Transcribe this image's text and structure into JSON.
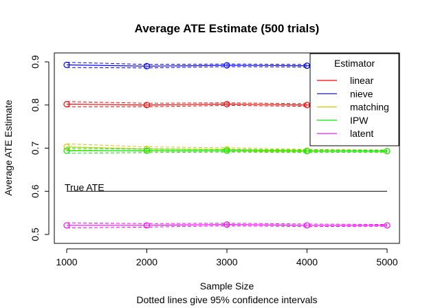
{
  "chart_data": {
    "type": "line",
    "title": "Average ATE Estimate (500 trials)",
    "xlabel": "Sample Size",
    "subxlabel": "Dotted lines give 95% confidence intervals",
    "ylabel": "Average ATE Estimate",
    "x": [
      1000,
      2000,
      3000,
      4000,
      5000
    ],
    "xticks": [
      "1000",
      "2000",
      "3000",
      "4000",
      "5000"
    ],
    "yticks": [
      "0.5",
      "0.6",
      "0.7",
      "0.8",
      "0.9"
    ],
    "ylim": [
      0.5,
      0.9
    ],
    "reference_line": {
      "label": "True ATE",
      "value": 0.6,
      "color": "#000000"
    },
    "legend": {
      "title": "Estimator",
      "position": "top-right"
    },
    "series": [
      {
        "name": "linear",
        "color": "#ff0000",
        "values": [
          0.802,
          0.8,
          0.802,
          0.8,
          0.8
        ],
        "ci": [
          0.006,
          0.004,
          0.003,
          0.003,
          0.002
        ]
      },
      {
        "name": "nieve",
        "color": "#0000ff",
        "values": [
          0.893,
          0.89,
          0.892,
          0.891,
          0.891
        ],
        "ci": [
          0.006,
          0.004,
          0.003,
          0.003,
          0.002
        ]
      },
      {
        "name": "matching",
        "color": "#cccc00",
        "values": [
          0.703,
          0.698,
          0.697,
          0.694,
          0.693
        ],
        "ci": [
          0.007,
          0.005,
          0.004,
          0.003,
          0.003
        ]
      },
      {
        "name": "IPW",
        "color": "#00ee00",
        "values": [
          0.694,
          0.694,
          0.694,
          0.693,
          0.693
        ],
        "ci": [
          0.006,
          0.004,
          0.003,
          0.003,
          0.002
        ]
      },
      {
        "name": "latent",
        "color": "#ff00ff",
        "values": [
          0.521,
          0.521,
          0.523,
          0.521,
          0.521
        ],
        "ci": [
          0.006,
          0.004,
          0.003,
          0.003,
          0.002
        ]
      }
    ]
  }
}
